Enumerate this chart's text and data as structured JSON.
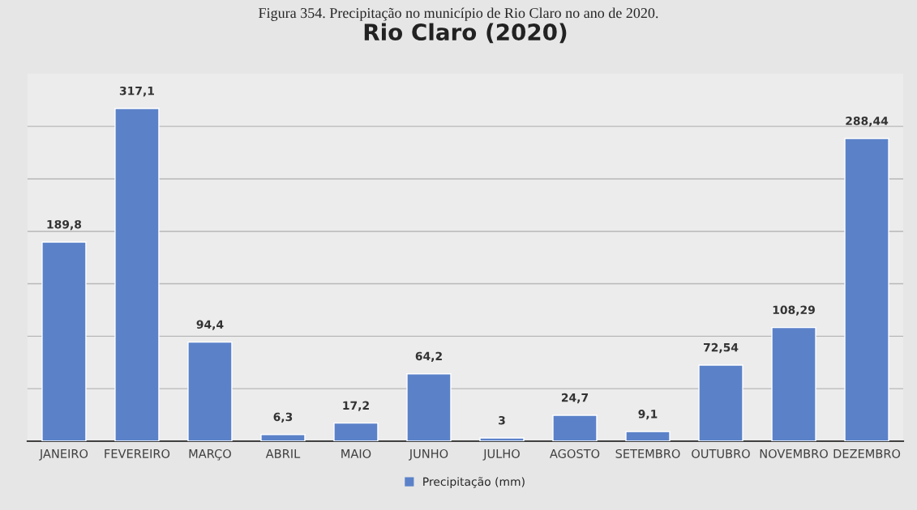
{
  "chart_data": {
    "type": "bar",
    "title": "Rio Claro (2020)",
    "annotations": [
      "Figura 354. Precipitação no município de Rio Claro no ano de 2020."
    ],
    "categories": [
      "JANEIRO",
      "FEVEREIRO",
      "MARÇO",
      "ABRIL",
      "MAIO",
      "JUNHO",
      "JULHO",
      "AGOSTO",
      "SETEMBRO",
      "OUTUBRO",
      "NOVEMBRO",
      "DEZEMBRO"
    ],
    "series": [
      {
        "name": "Precipitação (mm)",
        "color": "#5b82c9",
        "values": [
          189.8,
          317.1,
          94.4,
          6.3,
          17.2,
          64.2,
          3,
          24.7,
          9.1,
          72.54,
          108.29,
          288.44
        ],
        "value_labels": [
          "189,8",
          "317,1",
          "94,4",
          "6,3",
          "17,2",
          "64,2",
          "3",
          "24,7",
          "9,1",
          "72,54",
          "108,29",
          "288,44"
        ]
      }
    ],
    "ylim": [
      0,
      350
    ],
    "yticks": [
      {
        "value": 0,
        "label": null
      },
      {
        "value": 50,
        "label": null
      },
      {
        "value": 100,
        "label": null
      },
      {
        "value": 150,
        "label": null
      },
      {
        "value": 200,
        "label": null
      },
      {
        "value": 250,
        "label": null
      },
      {
        "value": 300,
        "label": null
      }
    ],
    "grid": "y",
    "legend": "bottom",
    "tick_labels": "x"
  }
}
